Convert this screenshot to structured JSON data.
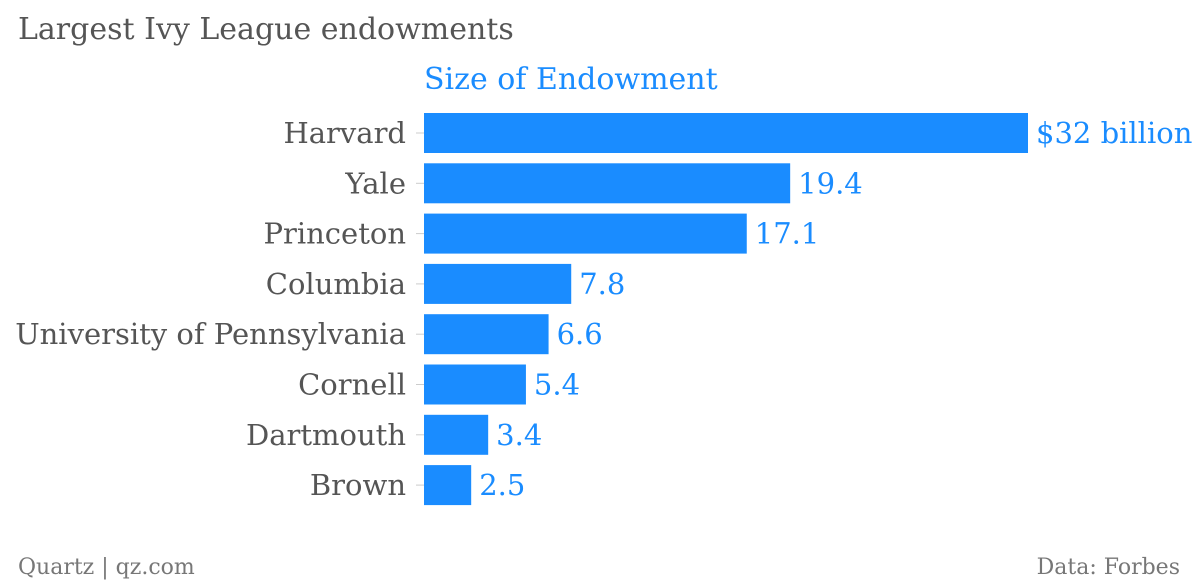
{
  "chart_data": {
    "type": "bar",
    "orientation": "horizontal",
    "title": "Largest Ivy League endowments",
    "series_title": "Size of Endowment",
    "categories": [
      "Harvard",
      "Yale",
      "Princeton",
      "Columbia",
      "University of Pennsylvania",
      "Cornell",
      "Dartmouth",
      "Brown"
    ],
    "values": [
      32,
      19.4,
      17.1,
      7.8,
      6.6,
      5.4,
      3.4,
      2.5
    ],
    "value_labels": [
      "$32 billion",
      "19.4",
      "17.1",
      "7.8",
      "6.6",
      "5.4",
      "3.4",
      "2.5"
    ],
    "unit": "billion",
    "xlim": [
      0,
      32
    ],
    "grid": false,
    "bar_color": "#1a8cff",
    "label_color": "#555555"
  },
  "footer": {
    "source_left": "Quartz | qz.com",
    "source_right": "Data: Forbes"
  }
}
